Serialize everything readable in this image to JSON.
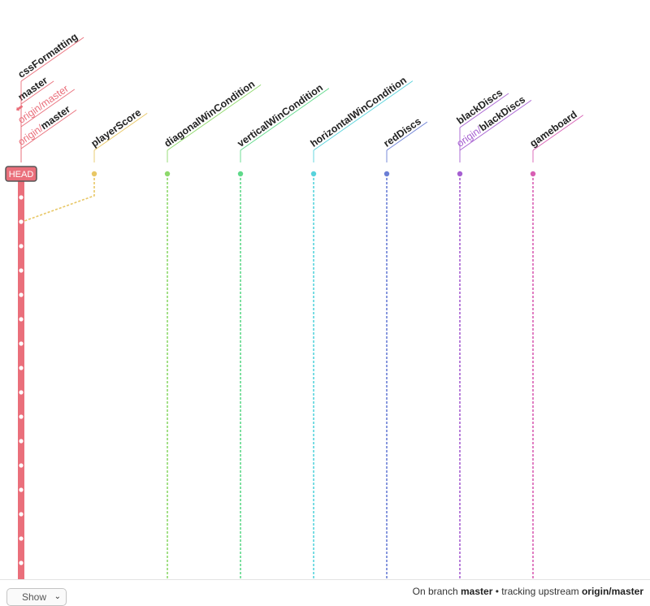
{
  "head_label": "HEAD",
  "master_color": "#ea6f7b",
  "master_refs": [
    {
      "text": "cssFormatting",
      "style": "bold"
    },
    {
      "text": "master",
      "style": "bold"
    },
    {
      "remote": "origin/",
      "branch": "master",
      "style": "remote-light",
      "arrow": true
    },
    {
      "remote": "origin/",
      "branch": "master",
      "style": "remote-bold"
    }
  ],
  "master_commit_count": 17,
  "branches": [
    {
      "refs": [
        {
          "text": "playerScore",
          "style": "bold"
        }
      ],
      "color": "#e8c765",
      "merged_into_master": true
    },
    {
      "refs": [
        {
          "text": "diagonalWinCondition",
          "style": "bold"
        }
      ],
      "color": "#8ed96b"
    },
    {
      "refs": [
        {
          "text": "verticalWinCondition",
          "style": "bold"
        }
      ],
      "color": "#5fd98a"
    },
    {
      "refs": [
        {
          "text": "horizontalWinCondition",
          "style": "bold"
        }
      ],
      "color": "#57d3dc"
    },
    {
      "refs": [
        {
          "text": "redDiscs",
          "style": "bold"
        }
      ],
      "color": "#6b7fd6"
    },
    {
      "refs": [
        {
          "text": "blackDiscs",
          "style": "bold"
        },
        {
          "remote": "origin/",
          "branch": "blackDiscs",
          "style": "remote-bold"
        }
      ],
      "color": "#a65fd1"
    },
    {
      "refs": [
        {
          "text": "gameboard",
          "style": "bold"
        }
      ],
      "color": "#d85fb4"
    }
  ],
  "footer": {
    "show_label": "Show",
    "status_prefix": "On branch",
    "status_branch": "master",
    "status_middle": "• tracking upstream",
    "status_upstream": "origin/master"
  }
}
